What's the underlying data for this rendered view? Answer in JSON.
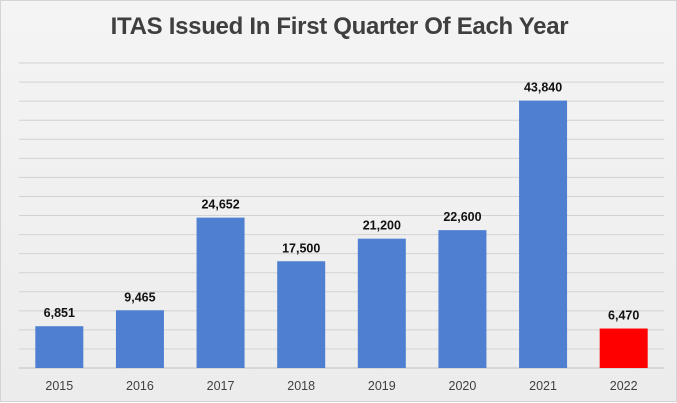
{
  "chart_data": {
    "type": "bar",
    "title": "ITAS Issued In First Quarter Of Each Year",
    "xlabel": "",
    "ylabel": "",
    "categories": [
      "2015",
      "2016",
      "2017",
      "2018",
      "2019",
      "2020",
      "2021",
      "2022"
    ],
    "values": [
      6851,
      9465,
      24652,
      17500,
      21200,
      22600,
      43840,
      6470
    ],
    "value_labels": [
      "6,851",
      "9,465",
      "24,652",
      "17,500",
      "21,200",
      "22,600",
      "43,840",
      "6,470"
    ],
    "ylim": [
      0,
      50000
    ],
    "grid": true,
    "legend": "none",
    "colors": {
      "bar": "#4f7fd1",
      "highlight_bar": "#ff0000",
      "highlight_category": "2022",
      "gridline": "#d2d2d2",
      "axis": "#bfbfbf"
    }
  }
}
